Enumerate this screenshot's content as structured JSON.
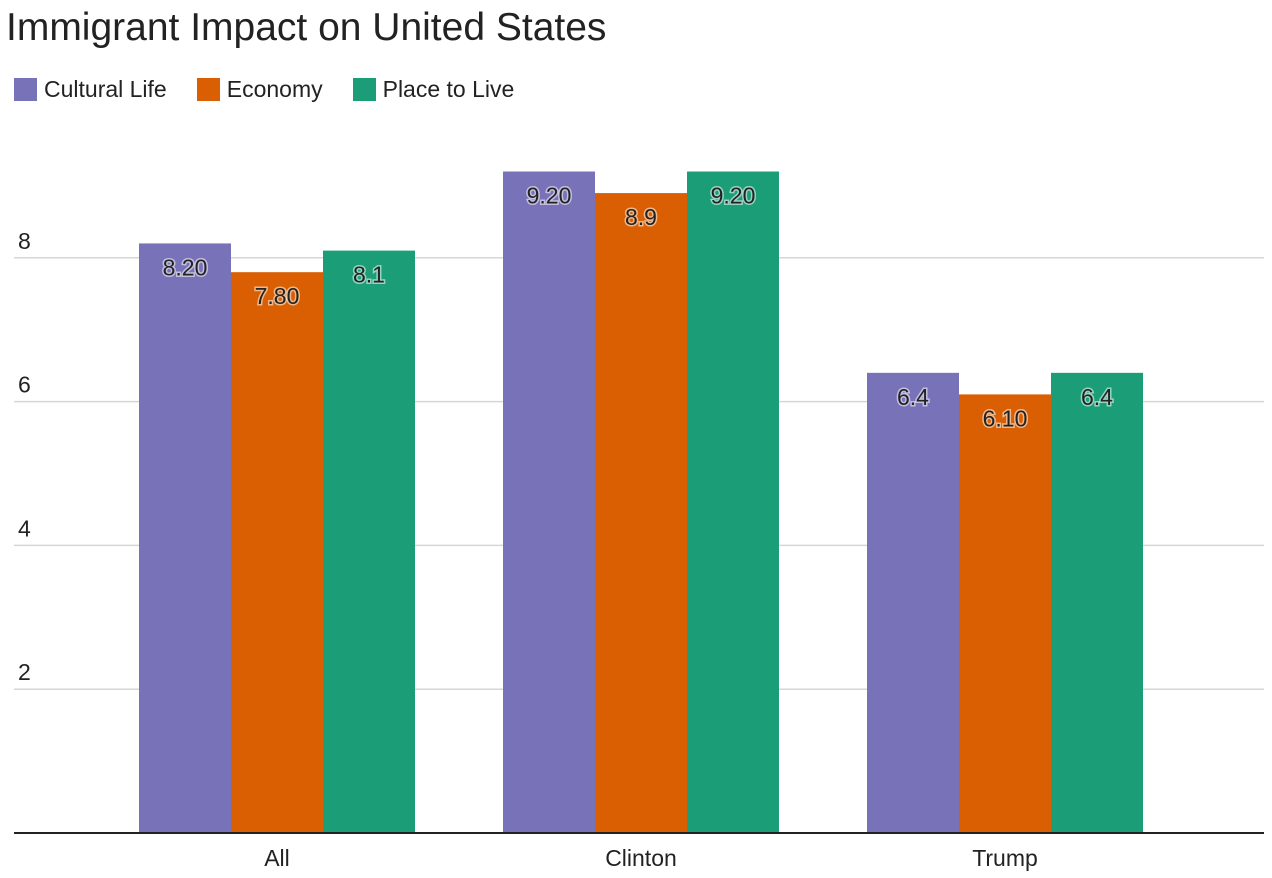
{
  "chart_data": {
    "type": "bar",
    "title": "Immigrant Impact on United States",
    "xlabel": "",
    "ylabel": "",
    "categories": [
      "All",
      "Clinton",
      "Trump"
    ],
    "series": [
      {
        "name": "Cultural Life",
        "color": "#7872b8",
        "values": [
          8.2,
          9.2,
          6.4
        ],
        "labels": [
          "8.20",
          "9.20",
          "6.4"
        ]
      },
      {
        "name": "Economy",
        "color": "#d95f02",
        "values": [
          7.8,
          8.9,
          6.1
        ],
        "labels": [
          "7.80",
          "8.9",
          "6.10"
        ]
      },
      {
        "name": "Place to Live",
        "color": "#1b9e77",
        "values": [
          8.1,
          9.2,
          6.4
        ],
        "labels": [
          "8.1",
          "9.20",
          "6.4"
        ]
      }
    ],
    "ylim": [
      0,
      10
    ],
    "yticks": [
      2,
      4,
      6,
      8
    ],
    "grid": true,
    "legend_position": "top-left"
  }
}
